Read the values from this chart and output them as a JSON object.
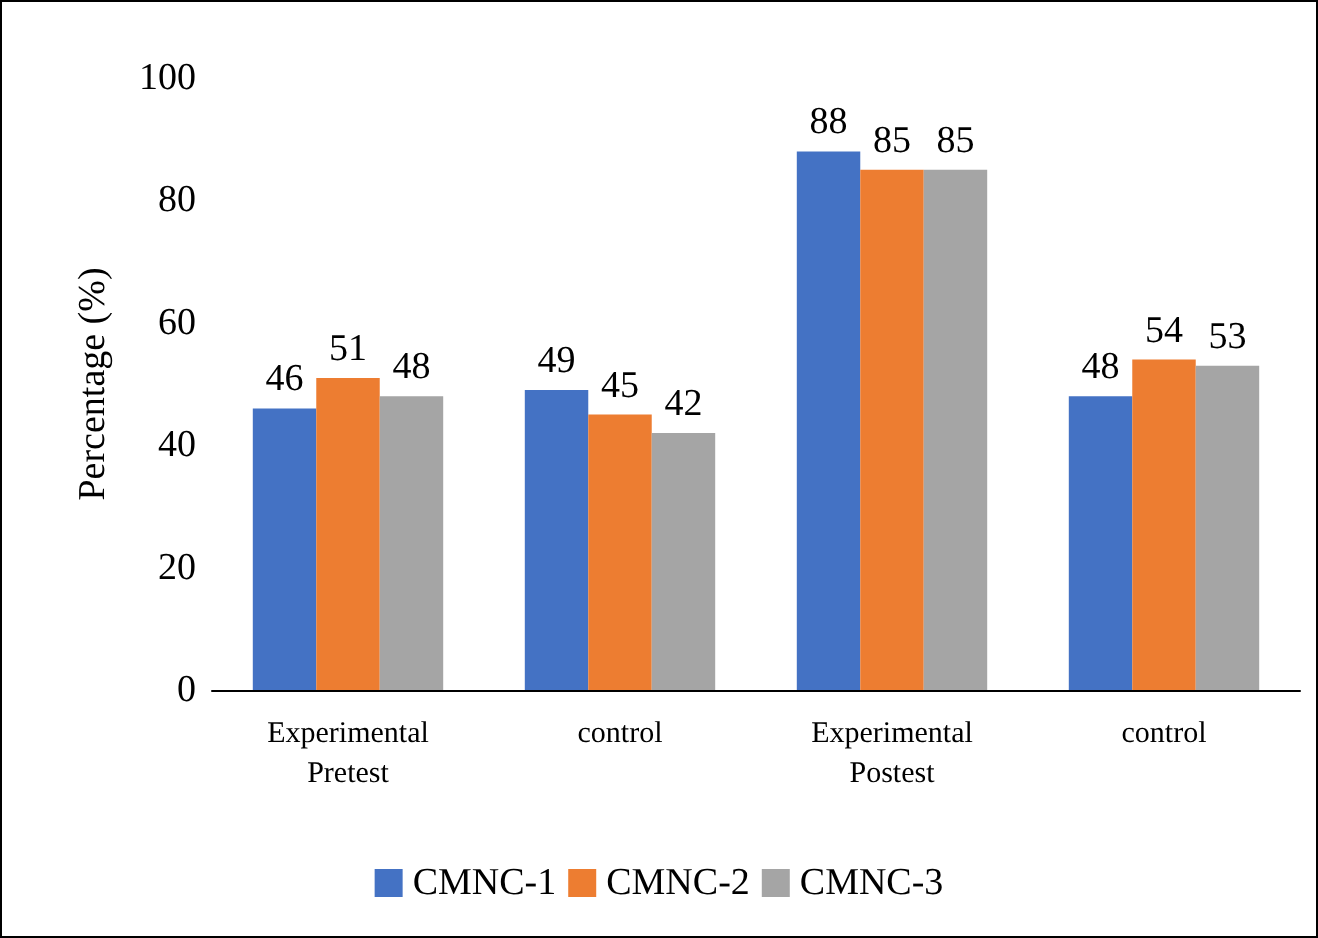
{
  "chart_data": {
    "type": "bar",
    "ylabel": "Percentage (%)",
    "categories": [
      "Experimental\nPretest",
      "control",
      "Experimental\nPostest",
      "control"
    ],
    "series": [
      {
        "name": "CMNC-1",
        "color": "#4472c4",
        "values": [
          46,
          49,
          88,
          48
        ]
      },
      {
        "name": "CMNC-2",
        "color": "#ed7d31",
        "values": [
          51,
          45,
          85,
          54
        ]
      },
      {
        "name": "CMNC-3",
        "color": "#a5a5a5",
        "values": [
          48,
          42,
          85,
          53
        ]
      }
    ],
    "ylim": [
      0,
      100
    ],
    "yticks": [
      0,
      20,
      40,
      60,
      80,
      100
    ],
    "grid": false,
    "legend": "bottom",
    "data_labels": true
  }
}
